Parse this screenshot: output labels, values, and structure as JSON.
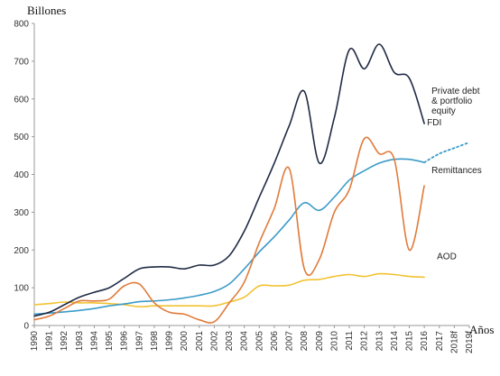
{
  "chart_data": {
    "type": "line",
    "ylabel": "Billones",
    "xlabel": "Años",
    "ylim": [
      0,
      800
    ],
    "yticks": [
      0,
      100,
      200,
      300,
      400,
      500,
      600,
      700,
      800
    ],
    "grid": false,
    "x": [
      "1990",
      "1991",
      "1992",
      "1993",
      "1994",
      "1995",
      "1996",
      "1997",
      "1998",
      "1999",
      "2000",
      "2001",
      "2002",
      "2003",
      "2004",
      "2005",
      "2006",
      "2007",
      "2008",
      "2009",
      "2010",
      "2011",
      "2012",
      "2013",
      "2014",
      "2015",
      "2016",
      "2017",
      "2018f",
      "2019f"
    ],
    "series": [
      {
        "name": "FDI",
        "color": "#1f2a44",
        "label_lines": [
          "FDI"
        ],
        "points": [
          [
            0,
            25
          ],
          [
            1,
            35
          ],
          [
            2,
            55
          ],
          [
            3,
            75
          ],
          [
            4,
            88
          ],
          [
            5,
            100
          ],
          [
            6,
            125
          ],
          [
            7,
            150
          ],
          [
            8,
            155
          ],
          [
            9,
            155
          ],
          [
            10,
            150
          ],
          [
            11,
            160
          ],
          [
            12,
            160
          ],
          [
            13,
            185
          ],
          [
            14,
            250
          ],
          [
            15,
            340
          ],
          [
            16,
            430
          ],
          [
            17,
            530
          ],
          [
            18,
            620
          ],
          [
            19,
            430
          ],
          [
            20,
            550
          ],
          [
            21,
            730
          ],
          [
            22,
            680
          ],
          [
            23,
            745
          ],
          [
            24,
            670
          ],
          [
            25,
            655
          ],
          [
            26,
            535
          ]
        ]
      },
      {
        "name": "Remittances",
        "color": "#3b9bc8",
        "label_lines": [
          "Remittances"
        ],
        "points": [
          [
            0,
            30
          ],
          [
            1,
            33
          ],
          [
            2,
            36
          ],
          [
            3,
            40
          ],
          [
            4,
            45
          ],
          [
            5,
            52
          ],
          [
            6,
            57
          ],
          [
            7,
            63
          ],
          [
            8,
            65
          ],
          [
            9,
            68
          ],
          [
            10,
            73
          ],
          [
            11,
            80
          ],
          [
            12,
            90
          ],
          [
            13,
            110
          ],
          [
            14,
            150
          ],
          [
            15,
            195
          ],
          [
            16,
            235
          ],
          [
            17,
            280
          ],
          [
            18,
            325
          ],
          [
            19,
            305
          ],
          [
            20,
            340
          ],
          [
            21,
            385
          ],
          [
            22,
            410
          ],
          [
            23,
            430
          ],
          [
            24,
            440
          ],
          [
            25,
            440
          ],
          [
            26,
            432
          ]
        ],
        "projection": [
          [
            26,
            432
          ],
          [
            27,
            455
          ],
          [
            28,
            470
          ],
          [
            29,
            485
          ]
        ]
      },
      {
        "name": "Private debt & portfolio equity",
        "color": "#e07b3a",
        "label_lines": [
          "Private debt",
          "& portfolio",
          "equity"
        ],
        "points": [
          [
            0,
            15
          ],
          [
            1,
            25
          ],
          [
            2,
            45
          ],
          [
            3,
            65
          ],
          [
            4,
            65
          ],
          [
            5,
            70
          ],
          [
            6,
            105
          ],
          [
            7,
            110
          ],
          [
            8,
            60
          ],
          [
            9,
            35
          ],
          [
            10,
            30
          ],
          [
            11,
            15
          ],
          [
            12,
            10
          ],
          [
            13,
            60
          ],
          [
            14,
            115
          ],
          [
            15,
            220
          ],
          [
            16,
            310
          ],
          [
            17,
            415
          ],
          [
            18,
            150
          ],
          [
            19,
            175
          ],
          [
            20,
            300
          ],
          [
            21,
            360
          ],
          [
            22,
            495
          ],
          [
            23,
            455
          ],
          [
            24,
            440
          ],
          [
            25,
            200
          ],
          [
            26,
            370
          ]
        ]
      },
      {
        "name": "AOD",
        "color": "#f2c230",
        "label_lines": [
          "AOD"
        ],
        "points": [
          [
            0,
            55
          ],
          [
            1,
            58
          ],
          [
            2,
            62
          ],
          [
            3,
            60
          ],
          [
            4,
            60
          ],
          [
            5,
            58
          ],
          [
            6,
            55
          ],
          [
            7,
            50
          ],
          [
            8,
            52
          ],
          [
            9,
            52
          ],
          [
            10,
            52
          ],
          [
            11,
            52
          ],
          [
            12,
            52
          ],
          [
            13,
            62
          ],
          [
            14,
            75
          ],
          [
            15,
            105
          ],
          [
            16,
            105
          ],
          [
            17,
            107
          ],
          [
            18,
            120
          ],
          [
            19,
            122
          ],
          [
            20,
            130
          ],
          [
            21,
            135
          ],
          [
            22,
            130
          ],
          [
            23,
            137
          ],
          [
            24,
            135
          ],
          [
            25,
            130
          ],
          [
            26,
            128
          ]
        ]
      }
    ]
  }
}
